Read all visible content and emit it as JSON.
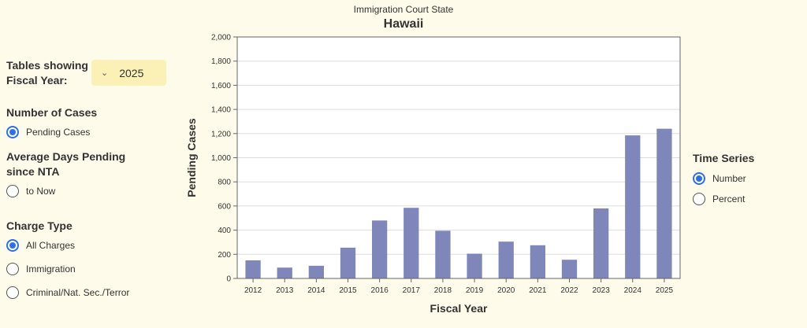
{
  "sidebar": {
    "tables_label_line1": "Tables showing",
    "tables_label_line2": "Fiscal Year:",
    "fiscal_year_selected": "2025",
    "number_of_cases_label": "Number of Cases",
    "pending_cases_option": "Pending Cases",
    "avg_days_label_line1": "Average Days Pending",
    "avg_days_label_line2": "since NTA",
    "to_now_option": "to Now",
    "charge_type_label": "Charge Type",
    "charge_options": [
      "All Charges",
      "Immigration",
      "Criminal/Nat. Sec./Terror"
    ]
  },
  "header": {
    "subtitle": "Immigration Court State",
    "title": "Hawaii"
  },
  "time_series": {
    "label": "Time Series",
    "options": [
      "Number",
      "Percent"
    ]
  },
  "colors": {
    "bar": "#7f86ba",
    "radio_accent": "#2f6fe4",
    "background": "#fefbea",
    "select_bg": "#fbf1b6"
  },
  "chart_data": {
    "type": "bar",
    "title": "Hawaii",
    "xlabel": "Fiscal Year",
    "ylabel": "Pending Cases",
    "categories": [
      "2012",
      "2013",
      "2014",
      "2015",
      "2016",
      "2017",
      "2018",
      "2019",
      "2020",
      "2021",
      "2022",
      "2023",
      "2024",
      "2025"
    ],
    "values": [
      150,
      90,
      105,
      255,
      480,
      585,
      395,
      205,
      305,
      275,
      155,
      580,
      1185,
      1240
    ],
    "ylim": [
      0,
      2000
    ],
    "yticks": [
      0,
      200,
      400,
      600,
      800,
      1000,
      1200,
      1400,
      1600,
      1800,
      2000
    ],
    "ytick_labels": [
      "0",
      "200",
      "400",
      "600",
      "800",
      "1,000",
      "1,200",
      "1,400",
      "1,600",
      "1,800",
      "2,000"
    ],
    "grid": true
  }
}
